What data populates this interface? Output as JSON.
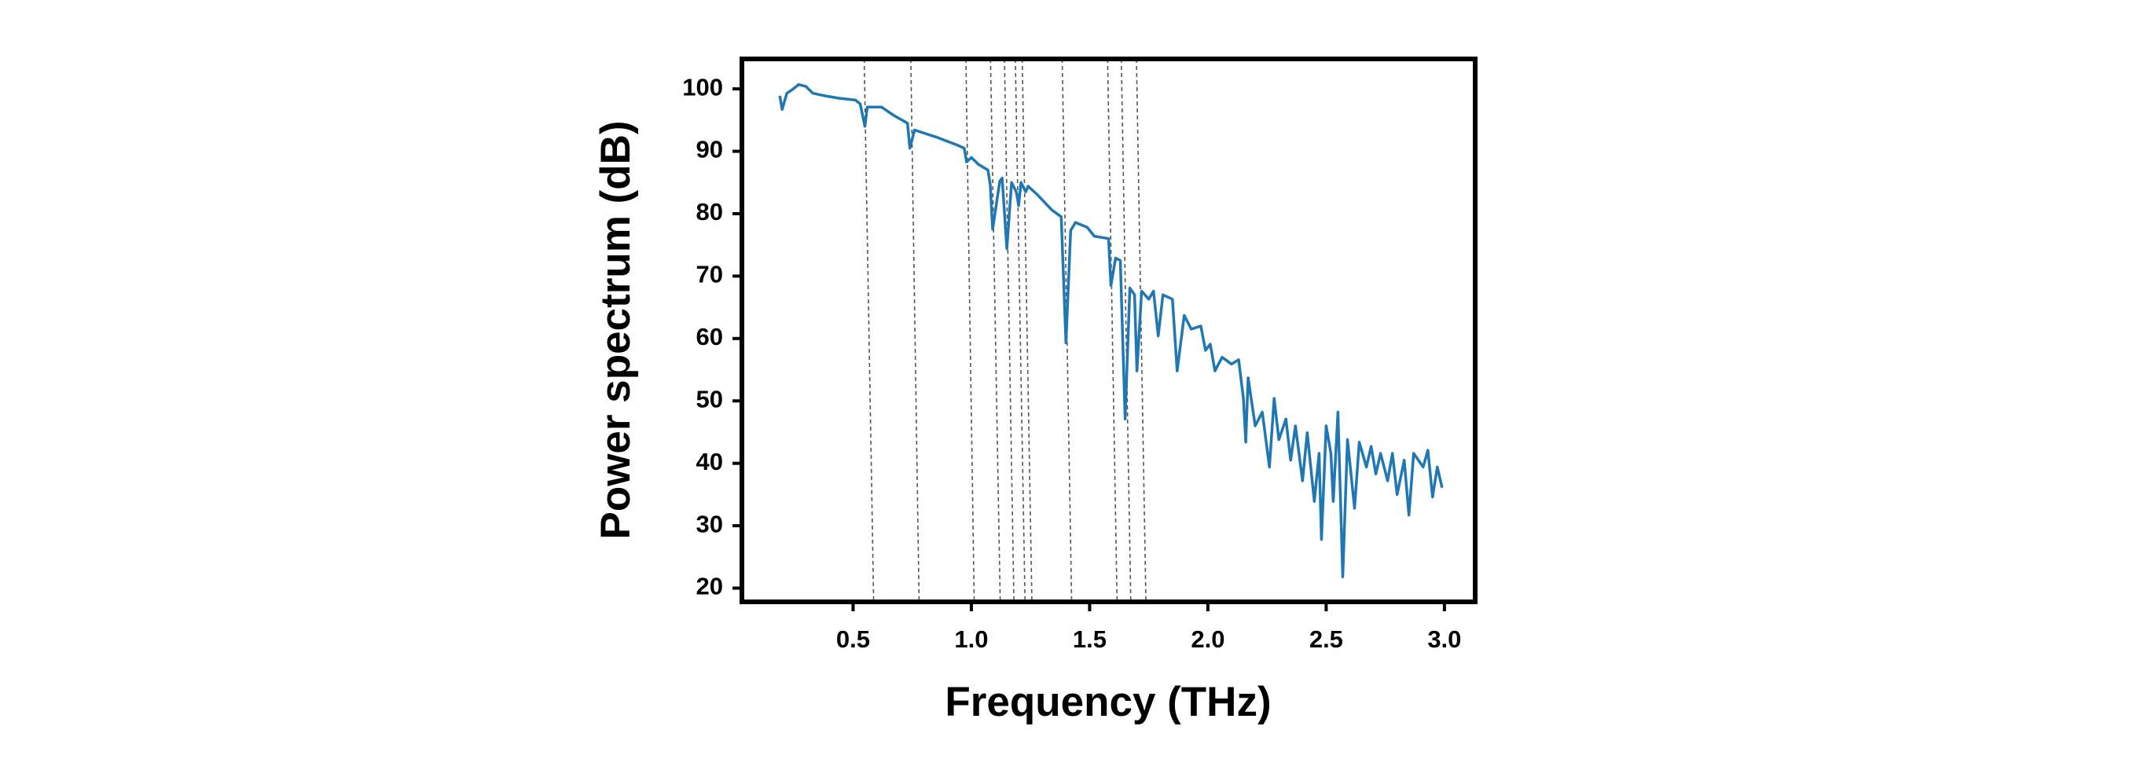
{
  "chart_data": {
    "type": "line",
    "xlabel": "Frequency (THz)",
    "ylabel": "Power spectrum (dB)",
    "xlim": [
      0.03,
      3.13
    ],
    "ylim": [
      17.8,
      104.8
    ],
    "xticks": [
      0.5,
      {
        "value": 1.0,
        "label": "1.0"
      },
      1.5,
      {
        "value": 2.0,
        "label": "2.0"
      },
      2.5,
      {
        "value": 3.0,
        "label": "3.0"
      }
    ],
    "yticks": [
      20,
      30,
      40,
      50,
      60,
      70,
      80,
      90,
      100
    ],
    "dashed_lines": [
      [
        0.547,
        0.587
      ],
      [
        0.744,
        0.779
      ],
      [
        0.977,
        1.012
      ],
      [
        1.081,
        1.122
      ],
      [
        1.14,
        1.18
      ],
      [
        1.186,
        1.227
      ],
      [
        1.215,
        1.256
      ],
      [
        1.384,
        1.424
      ],
      [
        1.576,
        1.616
      ],
      [
        1.634,
        1.674
      ],
      [
        1.698,
        1.738
      ]
    ],
    "dashed_color": "#555555",
    "series": [
      {
        "color": "#1f77b4",
        "x": [
          0.19,
          0.2,
          0.22,
          0.24,
          0.27,
          0.3,
          0.33,
          0.38,
          0.44,
          0.51,
          0.53,
          0.55,
          0.56,
          0.62,
          0.67,
          0.73,
          0.74,
          0.76,
          0.85,
          0.94,
          0.97,
          0.98,
          1.0,
          1.03,
          1.07,
          1.08,
          1.09,
          1.12,
          1.13,
          1.15,
          1.17,
          1.19,
          1.2,
          1.21,
          1.23,
          1.24,
          1.28,
          1.34,
          1.38,
          1.4,
          1.42,
          1.44,
          1.49,
          1.52,
          1.58,
          1.59,
          1.61,
          1.63,
          1.65,
          1.67,
          1.69,
          1.7,
          1.72,
          1.75,
          1.77,
          1.79,
          1.81,
          1.85,
          1.87,
          1.9,
          1.93,
          1.97,
          1.99,
          2.01,
          2.03,
          2.06,
          2.1,
          2.13,
          2.15,
          2.16,
          2.17,
          2.2,
          2.23,
          2.26,
          2.28,
          2.3,
          2.33,
          2.35,
          2.37,
          2.4,
          2.42,
          2.45,
          2.47,
          2.48,
          2.5,
          2.52,
          2.53,
          2.55,
          2.57,
          2.59,
          2.62,
          2.64,
          2.67,
          2.69,
          2.71,
          2.73,
          2.76,
          2.78,
          2.8,
          2.83,
          2.85,
          2.87,
          2.91,
          2.93,
          2.95,
          2.97,
          2.99
        ],
        "values": [
          98.9,
          96.7,
          99.3,
          99.8,
          100.7,
          100.4,
          99.3,
          98.9,
          98.5,
          98.2,
          97.6,
          94,
          97.1,
          97.1,
          95.8,
          94.5,
          90.5,
          93.4,
          92.3,
          91,
          90.5,
          88.3,
          89,
          87.9,
          87,
          84.6,
          77.5,
          85.2,
          85.7,
          74.4,
          85,
          83.5,
          81.3,
          85,
          83.5,
          84.4,
          83,
          80.6,
          79.5,
          59.3,
          77.3,
          78.6,
          77.8,
          76.4,
          76,
          68.5,
          72.9,
          72.5,
          47.1,
          68.1,
          67,
          54.8,
          67.6,
          66.3,
          67.6,
          60.4,
          67,
          66.3,
          54.8,
          63.7,
          61.5,
          62,
          58.1,
          59.1,
          54.8,
          57,
          55.9,
          56.6,
          50.4,
          43.4,
          53.7,
          46,
          48.2,
          39.4,
          50.4,
          43.8,
          47.1,
          40.5,
          46,
          37.2,
          44.9,
          33.9,
          41.6,
          27.8,
          46,
          41.6,
          33.9,
          48.2,
          21.8,
          43.8,
          32.8,
          43.4,
          39.4,
          42.7,
          38.3,
          41.6,
          37.2,
          41.6,
          35,
          40.5,
          31.7,
          41.6,
          39.4,
          42.1,
          34.6,
          39.4,
          36.1
        ]
      }
    ]
  }
}
